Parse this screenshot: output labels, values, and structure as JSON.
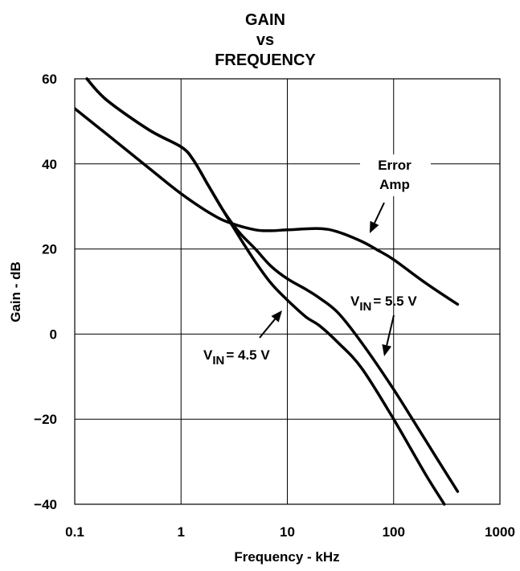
{
  "chart_data": {
    "type": "line",
    "title_lines": [
      "GAIN",
      "vs",
      "FREQUENCY"
    ],
    "xlabel": "Frequency - kHz",
    "ylabel": "Gain - dB",
    "x_scale": "log",
    "xlim": [
      0.1,
      1000
    ],
    "ylim": [
      -40,
      60
    ],
    "x_ticks": [
      "0.1",
      "1",
      "10",
      "100",
      "1000"
    ],
    "y_ticks": [
      "60",
      "40",
      "20",
      "0",
      "−20",
      "−40"
    ],
    "grid": true,
    "series": [
      {
        "name": "Error Amp",
        "x": [
          0.1,
          0.2,
          0.5,
          1,
          2,
          3,
          5,
          7,
          10,
          20,
          30,
          50,
          70,
          100,
          200,
          400
        ],
        "y": [
          53,
          47,
          39,
          33,
          28,
          26,
          24.5,
          24.3,
          24.5,
          24.8,
          24,
          21.8,
          19.8,
          17.5,
          12,
          7
        ]
      },
      {
        "name": "V_IN = 5.5 V",
        "x": [
          0.13,
          0.2,
          0.5,
          1,
          1.3,
          1.8,
          2.5,
          3.5,
          5,
          7,
          10,
          15,
          20,
          30,
          50,
          100,
          200,
          400
        ],
        "y": [
          60,
          55,
          48,
          44,
          41,
          35,
          29,
          24,
          20,
          16,
          13,
          10.5,
          8.5,
          5,
          -2,
          -13,
          -25,
          -37
        ]
      },
      {
        "name": "V_IN = 4.5 V",
        "x": [
          0.13,
          0.2,
          0.5,
          1,
          1.3,
          1.8,
          2.5,
          3.5,
          5,
          7,
          10,
          15,
          20,
          30,
          50,
          100,
          200,
          300
        ],
        "y": [
          60,
          55,
          48,
          44,
          41,
          35,
          29,
          23,
          17,
          12,
          8,
          4,
          2,
          -2,
          -8,
          -20,
          -33,
          -40
        ]
      }
    ],
    "annotations": [
      {
        "series": "Error Amp",
        "lines": [
          "Error",
          "Amp"
        ]
      },
      {
        "series": "V_IN = 5.5 V",
        "text": "V",
        "sub": "IN",
        "rest": "= 5.5 V"
      },
      {
        "series": "V_IN = 4.5 V",
        "text": "V",
        "sub": "IN",
        "rest": "= 4.5 V"
      }
    ]
  }
}
